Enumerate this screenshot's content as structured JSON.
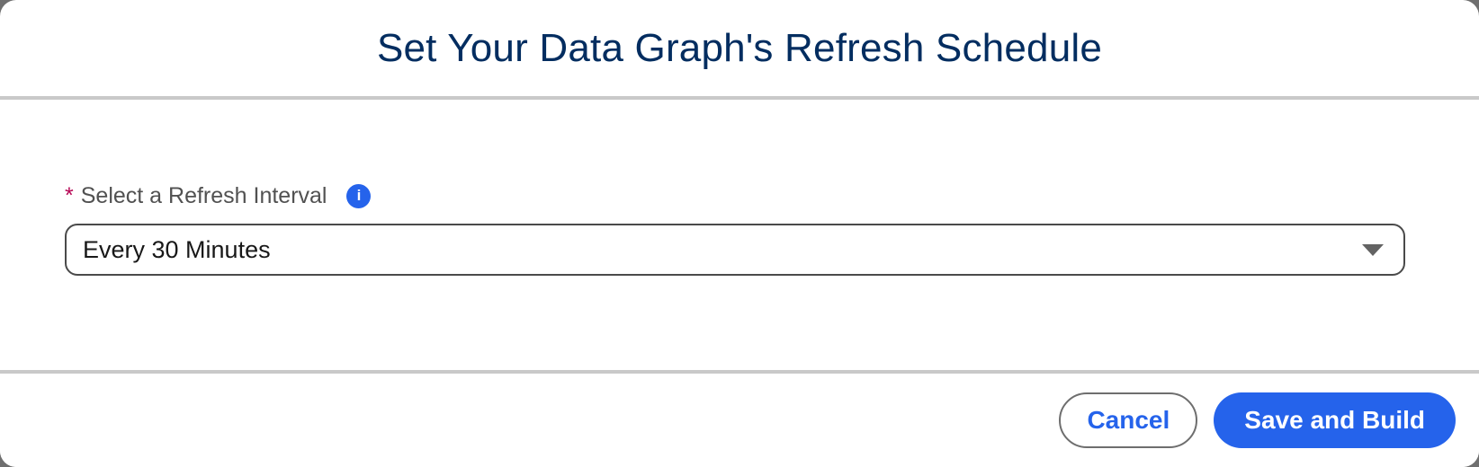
{
  "modal": {
    "title": "Set Your Data Graph's Refresh Schedule"
  },
  "form": {
    "required_marker": "*",
    "field_label": "Select a Refresh Interval",
    "info_icon_glyph": "i",
    "refresh_interval": {
      "selected_value": "Every 30 Minutes"
    }
  },
  "footer": {
    "cancel_label": "Cancel",
    "save_label": "Save and Build"
  },
  "icons": {
    "info": "info-icon",
    "chevron": "chevron-down-icon"
  },
  "colors": {
    "accent_blue": "#2563eb",
    "title_navy": "#032d60",
    "required_red": "#b60554",
    "label_gray": "#515151",
    "divider_gray": "#c9c9c9",
    "combobox_border": "#4a4a4a",
    "backdrop_gray": "#6f6f6f"
  }
}
